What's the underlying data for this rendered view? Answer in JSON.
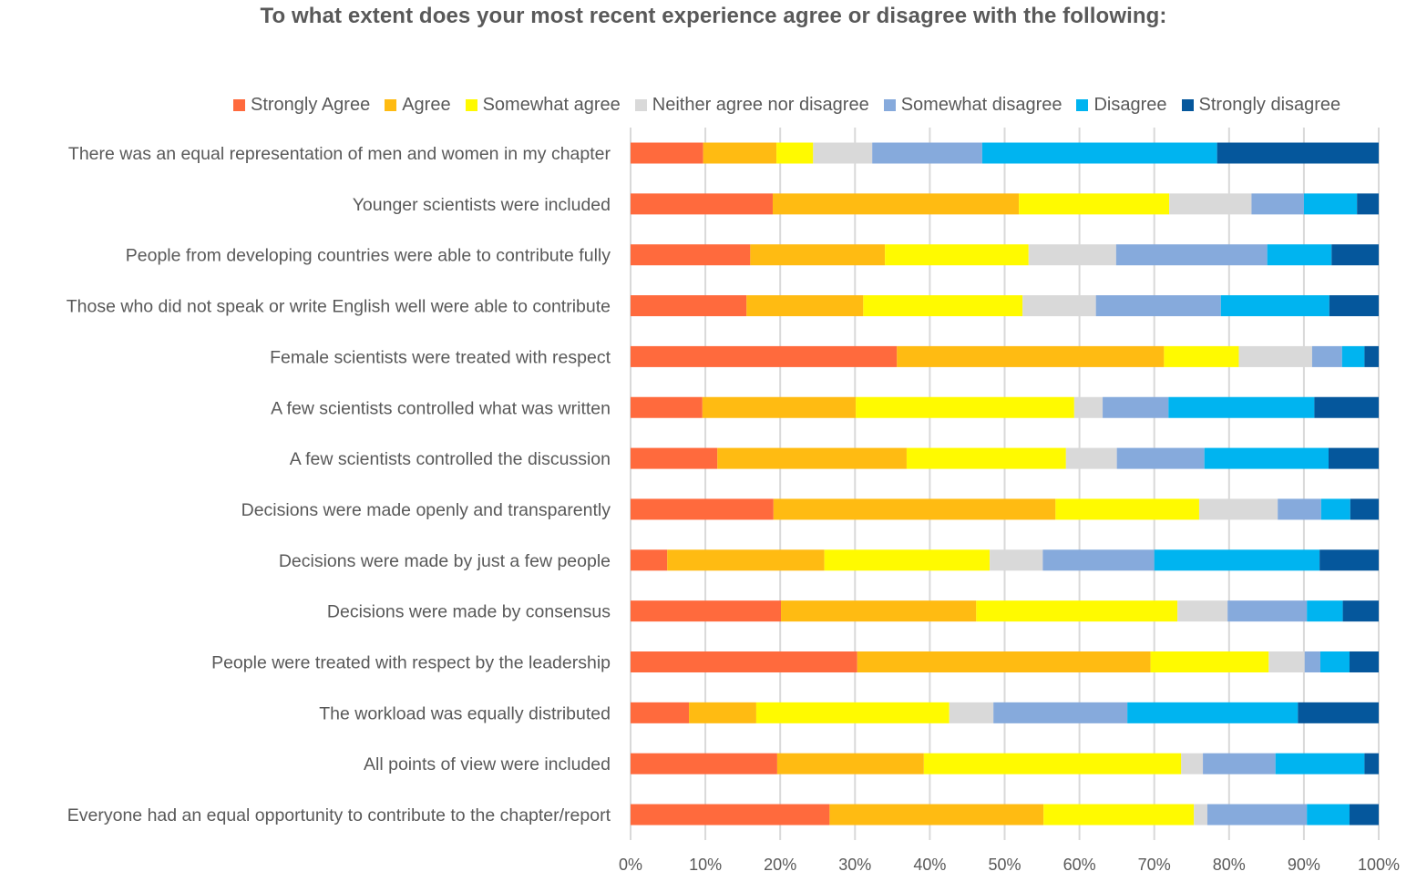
{
  "chart_data": {
    "type": "bar",
    "orientation": "horizontal",
    "stacked": "100%",
    "title": "To what extent does your most recent experience agree or disagree with the following:",
    "xlabel": "",
    "ylabel": "",
    "xlim": [
      0,
      100
    ],
    "x_ticks": [
      "0%",
      "10%",
      "20%",
      "30%",
      "40%",
      "50%",
      "60%",
      "70%",
      "80%",
      "90%",
      "100%"
    ],
    "grid": "vertical",
    "legend_position": "top",
    "categories": [
      "There was an equal representation of men and women in my chapter",
      "Younger scientists were included",
      "People from developing countries were able to contribute fully",
      "Those who did not speak or write English well were able to contribute",
      "Female scientists were treated with respect",
      "A few scientists controlled what was written",
      "A few scientists controlled the discussion",
      "Decisions were made openly and transparently",
      "Decisions were made by just a few people",
      "Decisions were made by consensus",
      "People were treated with respect by the leadership",
      "The workload was equally distributed",
      "All points of view were included",
      "Everyone had an equal opportunity to contribute to the chapter/report"
    ],
    "series": [
      {
        "name": "Strongly Agree",
        "color": "#FF6A3D",
        "values": [
          9.7,
          19.0,
          16.0,
          15.5,
          35.6,
          9.6,
          11.6,
          19.1,
          4.9,
          20.1,
          30.3,
          7.8,
          19.6,
          26.6
        ]
      },
      {
        "name": "Agree",
        "color": "#FFBB12",
        "values": [
          9.8,
          32.9,
          18.0,
          15.6,
          35.7,
          20.5,
          25.3,
          37.7,
          21.0,
          26.1,
          39.2,
          9.0,
          19.6,
          28.6
        ]
      },
      {
        "name": "Somewhat agree",
        "color": "#FFFA00",
        "values": [
          4.9,
          20.1,
          19.2,
          21.3,
          10.0,
          29.2,
          21.3,
          19.2,
          22.1,
          26.9,
          15.8,
          25.8,
          34.4,
          20.1
        ]
      },
      {
        "name": "Neither agree nor disagree",
        "color": "#D9D9D9",
        "values": [
          7.9,
          11.0,
          11.7,
          9.8,
          9.8,
          3.8,
          6.8,
          10.5,
          7.1,
          6.7,
          4.8,
          5.9,
          2.9,
          1.8
        ]
      },
      {
        "name": "Somewhat disagree",
        "color": "#86AADC",
        "values": [
          14.7,
          7.0,
          20.2,
          16.7,
          4.0,
          8.8,
          11.7,
          5.8,
          14.9,
          10.6,
          2.1,
          17.9,
          9.7,
          13.3
        ]
      },
      {
        "name": "Disagree",
        "color": "#00B4F0",
        "values": [
          31.4,
          7.1,
          8.6,
          14.5,
          3.0,
          19.5,
          16.6,
          3.9,
          22.1,
          4.8,
          3.9,
          22.8,
          11.9,
          5.7
        ]
      },
      {
        "name": "Strongly disagree",
        "color": "#05579C",
        "values": [
          21.6,
          2.9,
          6.3,
          6.6,
          1.9,
          8.6,
          6.7,
          3.8,
          7.9,
          4.8,
          3.9,
          10.8,
          1.9,
          3.9
        ]
      }
    ]
  }
}
